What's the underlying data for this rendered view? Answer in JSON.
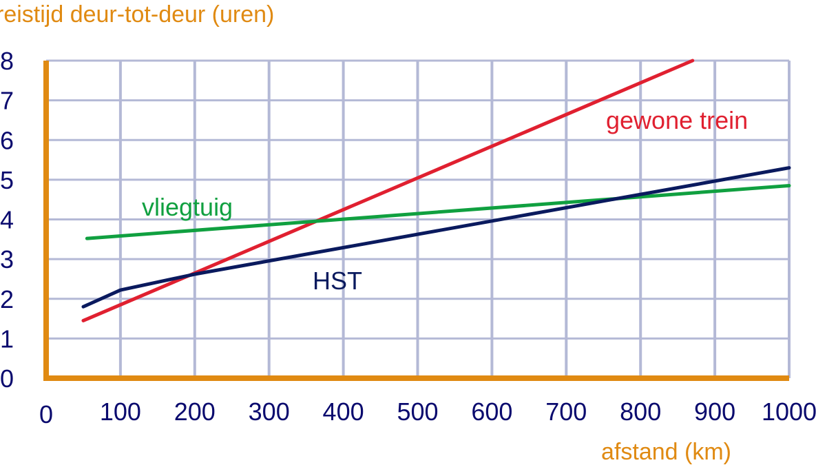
{
  "chart_data": {
    "type": "line",
    "title": "",
    "ylabel": "reistijd deur-tot-deur (uren)",
    "xlabel": "afstand (km)",
    "xlim": [
      0,
      1000
    ],
    "ylim": [
      0,
      8
    ],
    "xticks": [
      "0",
      "100",
      "200",
      "300",
      "400",
      "500",
      "600",
      "700",
      "800",
      "900",
      "1000"
    ],
    "yticks": [
      "0",
      "1",
      "2",
      "3",
      "4",
      "5",
      "6",
      "7",
      "8"
    ],
    "grid": true,
    "colors": {
      "axis": "#e08a12",
      "grid": "#b4b9d6",
      "tick_text": "#0a0a6e"
    },
    "series": [
      {
        "name": "gewone trein",
        "color": "#e02030",
        "points": [
          [
            50,
            1.45
          ],
          [
            870,
            8.0
          ]
        ]
      },
      {
        "name": "vliegtuig",
        "color": "#10a040",
        "points": [
          [
            55,
            3.52
          ],
          [
            1000,
            4.85
          ]
        ]
      },
      {
        "name": "HST",
        "color": "#0a1a5e",
        "points": [
          [
            50,
            1.8
          ],
          [
            100,
            2.22
          ],
          [
            200,
            2.62
          ],
          [
            1000,
            5.3
          ]
        ]
      }
    ]
  }
}
